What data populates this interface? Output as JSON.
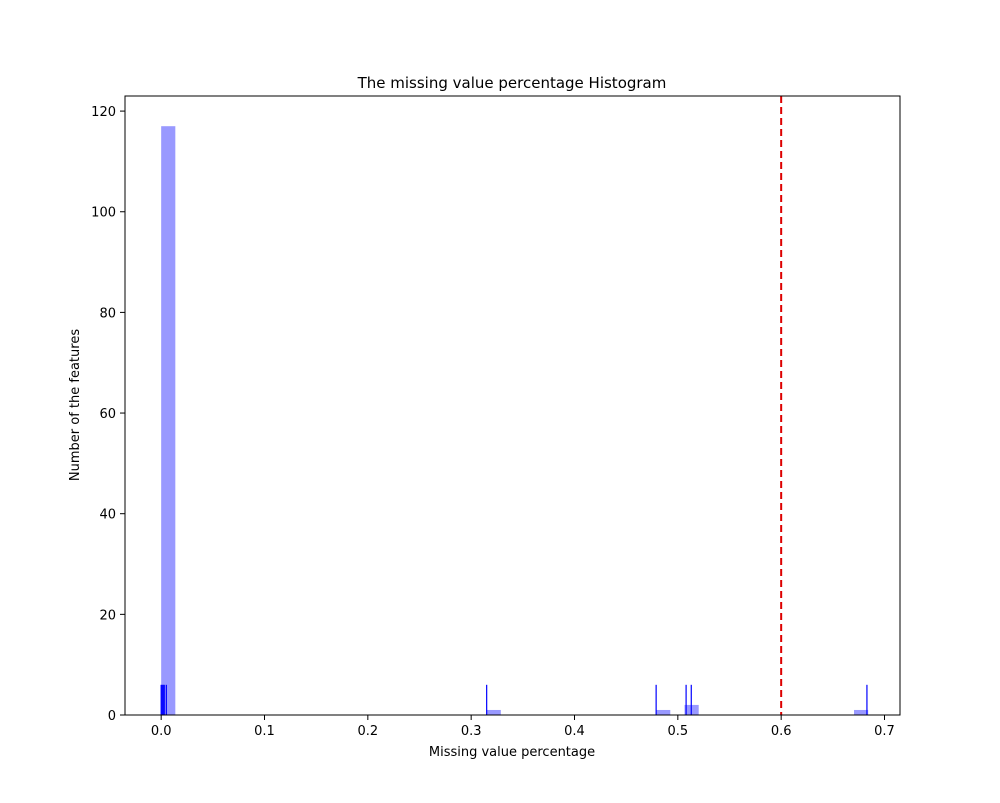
{
  "chart_data": {
    "type": "bar",
    "title": "The missing value percentage Histogram",
    "xlabel": "Missing value percentage",
    "ylabel": "Number of the features",
    "xlim": [
      -0.035,
      0.715
    ],
    "ylim": [
      0,
      123
    ],
    "xticks": [
      0.0,
      0.1,
      0.2,
      0.3,
      0.4,
      0.5,
      0.6,
      0.7
    ],
    "xtick_labels": [
      "0.0",
      "0.1",
      "0.2",
      "0.3",
      "0.4",
      "0.5",
      "0.6",
      "0.7"
    ],
    "yticks": [
      0,
      20,
      40,
      60,
      80,
      100,
      120
    ],
    "ytick_labels": [
      "0",
      "20",
      "40",
      "60",
      "80",
      "100",
      "120"
    ],
    "grid": false,
    "histogram": {
      "bin_width": 0.0137,
      "bins": [
        {
          "x0": 0.0,
          "count": 117
        },
        {
          "x0": 0.315,
          "count": 1
        },
        {
          "x0": 0.479,
          "count": 1
        },
        {
          "x0": 0.5065,
          "count": 2
        },
        {
          "x0": 0.6705,
          "count": 1
        }
      ],
      "color": "#0000ff",
      "opacity": 0.4
    },
    "rug": {
      "values": [
        0.0,
        0.001,
        0.002,
        0.003,
        0.005,
        0.315,
        0.479,
        0.508,
        0.513,
        0.683
      ],
      "height": 6,
      "color": "#0000ff"
    },
    "threshold_line": {
      "x": 0.6,
      "color": "#dd0000",
      "style": "dashed"
    }
  }
}
